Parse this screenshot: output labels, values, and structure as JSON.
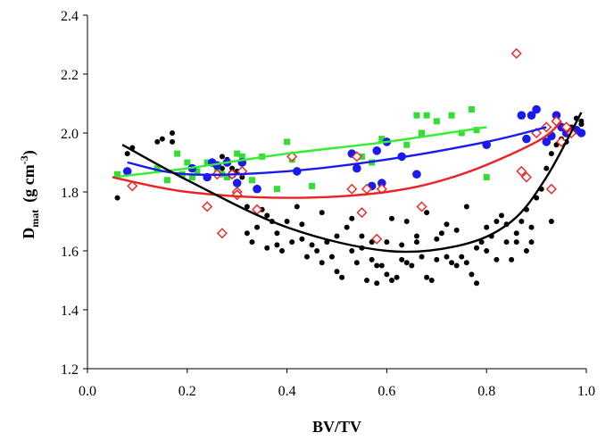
{
  "chart_data": {
    "type": "scatter",
    "title": "",
    "xlabel": "BV/TV",
    "ylabel": {
      "main": "D",
      "sub": "mat",
      "unit_open": "(g cm",
      "unit_sup": "-3",
      "unit_close": ")"
    },
    "xlim": [
      0.0,
      1.0
    ],
    "ylim": [
      1.2,
      2.4
    ],
    "x_ticks": [
      "0.0",
      "0.2",
      "0.4",
      "0.6",
      "0.8",
      "1.0"
    ],
    "y_ticks": [
      "1.2",
      "1.4",
      "1.6",
      "1.8",
      "2.0",
      "2.2",
      "2.4"
    ],
    "grid": false,
    "legend": "none",
    "series": [
      {
        "marker": "circle-small",
        "color": "#000000",
        "points": [
          [
            0.06,
            1.78
          ],
          [
            0.08,
            1.93
          ],
          [
            0.09,
            1.95
          ],
          [
            0.14,
            1.97
          ],
          [
            0.15,
            1.98
          ],
          [
            0.17,
            2.0
          ],
          [
            0.17,
            1.97
          ],
          [
            0.27,
            1.88
          ],
          [
            0.27,
            1.92
          ],
          [
            0.28,
            1.91
          ],
          [
            0.29,
            1.88
          ],
          [
            0.3,
            1.87
          ],
          [
            0.31,
            1.85
          ],
          [
            0.32,
            1.75
          ],
          [
            0.32,
            1.66
          ],
          [
            0.33,
            1.63
          ],
          [
            0.34,
            1.68
          ],
          [
            0.35,
            1.74
          ],
          [
            0.36,
            1.72
          ],
          [
            0.37,
            1.7
          ],
          [
            0.38,
            1.66
          ],
          [
            0.39,
            1.6
          ],
          [
            0.4,
            1.7
          ],
          [
            0.41,
            1.63
          ],
          [
            0.42,
            1.75
          ],
          [
            0.43,
            1.64
          ],
          [
            0.44,
            1.58
          ],
          [
            0.45,
            1.62
          ],
          [
            0.46,
            1.6
          ],
          [
            0.47,
            1.56
          ],
          [
            0.48,
            1.63
          ],
          [
            0.49,
            1.58
          ],
          [
            0.5,
            1.53
          ],
          [
            0.51,
            1.51
          ],
          [
            0.52,
            1.68
          ],
          [
            0.53,
            1.6
          ],
          [
            0.54,
            1.56
          ],
          [
            0.55,
            1.61
          ],
          [
            0.56,
            1.5
          ],
          [
            0.57,
            1.57
          ],
          [
            0.58,
            1.49
          ],
          [
            0.59,
            1.55
          ],
          [
            0.6,
            1.52
          ],
          [
            0.61,
            1.5
          ],
          [
            0.62,
            1.51
          ],
          [
            0.63,
            1.57
          ],
          [
            0.64,
            1.56
          ],
          [
            0.65,
            1.55
          ],
          [
            0.66,
            1.63
          ],
          [
            0.67,
            1.58
          ],
          [
            0.68,
            1.51
          ],
          [
            0.69,
            1.5
          ],
          [
            0.7,
            1.57
          ],
          [
            0.71,
            1.66
          ],
          [
            0.72,
            1.58
          ],
          [
            0.73,
            1.56
          ],
          [
            0.74,
            1.55
          ],
          [
            0.75,
            1.58
          ],
          [
            0.76,
            1.56
          ],
          [
            0.77,
            1.52
          ],
          [
            0.78,
            1.49
          ],
          [
            0.79,
            1.63
          ],
          [
            0.8,
            1.68
          ],
          [
            0.81,
            1.65
          ],
          [
            0.82,
            1.7
          ],
          [
            0.83,
            1.72
          ],
          [
            0.84,
            1.69
          ],
          [
            0.85,
            1.57
          ],
          [
            0.86,
            1.63
          ],
          [
            0.87,
            1.7
          ],
          [
            0.88,
            1.74
          ],
          [
            0.89,
            1.63
          ],
          [
            0.9,
            1.78
          ],
          [
            0.91,
            1.81
          ],
          [
            0.92,
            1.88
          ],
          [
            0.93,
            1.93
          ],
          [
            0.94,
            1.96
          ],
          [
            0.95,
            1.98
          ],
          [
            0.96,
            1.97
          ],
          [
            0.97,
            2.0
          ],
          [
            0.97,
            2.02
          ],
          [
            0.98,
            2.01
          ],
          [
            0.98,
            2.05
          ],
          [
            0.99,
            2.03
          ],
          [
            0.99,
            2.04
          ],
          [
            0.58,
            1.55
          ],
          [
            0.63,
            1.62
          ],
          [
            0.53,
            1.71
          ],
          [
            0.47,
            1.73
          ],
          [
            0.43,
            1.69
          ],
          [
            0.61,
            1.71
          ],
          [
            0.68,
            1.73
          ],
          [
            0.74,
            1.67
          ],
          [
            0.76,
            1.75
          ],
          [
            0.8,
            1.6
          ],
          [
            0.84,
            1.63
          ],
          [
            0.89,
            1.68
          ],
          [
            0.55,
            1.65
          ],
          [
            0.6,
            1.63
          ],
          [
            0.66,
            1.65
          ],
          [
            0.72,
            1.69
          ],
          [
            0.78,
            1.61
          ],
          [
            0.86,
            1.66
          ],
          [
            0.38,
            1.62
          ],
          [
            0.36,
            1.61
          ],
          [
            0.5,
            1.65
          ],
          [
            0.57,
            1.63
          ],
          [
            0.64,
            1.7
          ],
          [
            0.7,
            1.64
          ],
          [
            0.82,
            1.57
          ],
          [
            0.88,
            1.6
          ],
          [
            0.93,
            1.7
          ]
        ]
      },
      {
        "marker": "square",
        "color": "#33dd33",
        "points": [
          [
            0.06,
            1.86
          ],
          [
            0.14,
            1.88
          ],
          [
            0.16,
            1.84
          ],
          [
            0.18,
            1.93
          ],
          [
            0.19,
            1.86
          ],
          [
            0.2,
            1.9
          ],
          [
            0.21,
            1.85
          ],
          [
            0.22,
            1.87
          ],
          [
            0.24,
            1.9
          ],
          [
            0.26,
            1.88
          ],
          [
            0.27,
            1.86
          ],
          [
            0.28,
            1.85
          ],
          [
            0.3,
            1.93
          ],
          [
            0.31,
            1.92
          ],
          [
            0.33,
            1.84
          ],
          [
            0.35,
            1.92
          ],
          [
            0.38,
            1.81
          ],
          [
            0.4,
            1.97
          ],
          [
            0.41,
            1.91
          ],
          [
            0.45,
            1.82
          ],
          [
            0.53,
            1.93
          ],
          [
            0.55,
            1.92
          ],
          [
            0.57,
            1.9
          ],
          [
            0.59,
            1.98
          ],
          [
            0.64,
            1.96
          ],
          [
            0.66,
            2.06
          ],
          [
            0.67,
            2.0
          ],
          [
            0.68,
            2.06
          ],
          [
            0.7,
            2.04
          ],
          [
            0.73,
            2.06
          ],
          [
            0.75,
            2.0
          ],
          [
            0.77,
            2.08
          ],
          [
            0.78,
            2.01
          ],
          [
            0.8,
            1.85
          ]
        ]
      },
      {
        "marker": "circle-large",
        "color": "#1a1aee",
        "points": [
          [
            0.08,
            1.87
          ],
          [
            0.21,
            1.88
          ],
          [
            0.24,
            1.85
          ],
          [
            0.25,
            1.9
          ],
          [
            0.26,
            1.89
          ],
          [
            0.28,
            1.9
          ],
          [
            0.29,
            1.86
          ],
          [
            0.3,
            1.83
          ],
          [
            0.31,
            1.9
          ],
          [
            0.34,
            1.81
          ],
          [
            0.42,
            1.87
          ],
          [
            0.53,
            1.93
          ],
          [
            0.54,
            1.88
          ],
          [
            0.57,
            1.82
          ],
          [
            0.58,
            1.94
          ],
          [
            0.59,
            1.83
          ],
          [
            0.6,
            1.97
          ],
          [
            0.63,
            1.92
          ],
          [
            0.66,
            1.86
          ],
          [
            0.8,
            1.96
          ],
          [
            0.87,
            2.06
          ],
          [
            0.88,
            1.98
          ],
          [
            0.89,
            2.06
          ],
          [
            0.9,
            2.08
          ],
          [
            0.92,
            1.97
          ],
          [
            0.93,
            1.99
          ],
          [
            0.94,
            2.06
          ],
          [
            0.95,
            2.02
          ],
          [
            0.96,
            2.0
          ],
          [
            0.98,
            2.01
          ],
          [
            0.99,
            2.0
          ]
        ]
      },
      {
        "marker": "diamond-open",
        "color": "#ee2222",
        "points": [
          [
            0.09,
            1.82
          ],
          [
            0.24,
            1.75
          ],
          [
            0.26,
            1.86
          ],
          [
            0.27,
            1.66
          ],
          [
            0.29,
            1.86
          ],
          [
            0.3,
            1.8
          ],
          [
            0.3,
            1.79
          ],
          [
            0.31,
            1.87
          ],
          [
            0.34,
            1.74
          ],
          [
            0.41,
            1.92
          ],
          [
            0.53,
            1.81
          ],
          [
            0.54,
            1.92
          ],
          [
            0.55,
            1.73
          ],
          [
            0.56,
            1.81
          ],
          [
            0.58,
            1.64
          ],
          [
            0.59,
            1.81
          ],
          [
            0.67,
            1.75
          ],
          [
            0.86,
            2.27
          ],
          [
            0.87,
            1.87
          ],
          [
            0.88,
            1.85
          ],
          [
            0.9,
            2.0
          ],
          [
            0.92,
            2.02
          ],
          [
            0.93,
            1.81
          ],
          [
            0.94,
            2.04
          ],
          [
            0.95,
            1.97
          ],
          [
            0.96,
            2.02
          ],
          [
            0.97,
            2.0
          ]
        ]
      }
    ],
    "trend_lines": [
      {
        "color": "#33ee33",
        "points": [
          [
            0.05,
            1.85
          ],
          [
            0.2,
            1.88
          ],
          [
            0.4,
            1.93
          ],
          [
            0.6,
            1.97
          ],
          [
            0.8,
            2.02
          ]
        ]
      },
      {
        "color": "#1a1aee",
        "points": [
          [
            0.08,
            1.9
          ],
          [
            0.2,
            1.86
          ],
          [
            0.4,
            1.87
          ],
          [
            0.6,
            1.91
          ],
          [
            0.8,
            1.97
          ],
          [
            0.92,
            2.02
          ]
        ]
      },
      {
        "color": "#ee2222",
        "points": [
          [
            0.05,
            1.85
          ],
          [
            0.2,
            1.8
          ],
          [
            0.4,
            1.78
          ],
          [
            0.6,
            1.8
          ],
          [
            0.75,
            1.86
          ],
          [
            0.9,
            1.97
          ],
          [
            0.95,
            2.04
          ]
        ]
      },
      {
        "color": "#000000",
        "points": [
          [
            0.07,
            1.96
          ],
          [
            0.2,
            1.84
          ],
          [
            0.4,
            1.68
          ],
          [
            0.6,
            1.6
          ],
          [
            0.75,
            1.62
          ],
          [
            0.85,
            1.7
          ],
          [
            0.92,
            1.85
          ],
          [
            0.99,
            2.07
          ]
        ]
      }
    ]
  }
}
